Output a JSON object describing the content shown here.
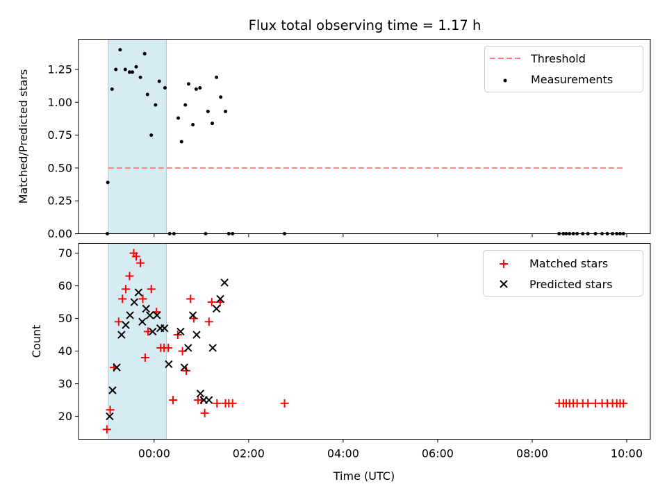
{
  "title": "Flux total observing time = 1.17 h",
  "chart_data": [
    {
      "type": "scatter",
      "name": "ratio-panel",
      "ylabel": "Matched/Predicted stars",
      "xlabel": "",
      "xlim": [
        -1.6,
        10.5
      ],
      "ylim": [
        0,
        1.48
      ],
      "yticks": [
        0.0,
        0.25,
        0.5,
        0.75,
        1.0,
        1.25
      ],
      "ytick_labels": [
        "0.00",
        "0.25",
        "0.50",
        "0.75",
        "1.00",
        "1.25"
      ],
      "shaded_interval": [
        -0.97,
        0.26
      ],
      "threshold": {
        "label": "Threshold",
        "y": 0.5,
        "x": [
          -0.97,
          9.93
        ],
        "color": "#ff7f7f"
      },
      "measurements": {
        "label": "Measurements",
        "color": "#000000",
        "x": [
          -0.99,
          -0.89,
          -0.81,
          -0.72,
          -0.61,
          -0.52,
          -0.46,
          -0.38,
          -0.29,
          -0.2,
          -0.14,
          -0.06,
          0.03,
          0.11,
          0.23,
          0.51,
          0.58,
          0.66,
          0.73,
          0.82,
          0.89,
          0.97,
          1.14,
          1.23,
          1.32,
          1.41,
          1.51,
          -0.98,
          0.33,
          0.42,
          1.09,
          1.58,
          1.66,
          2.76,
          8.57,
          8.66,
          8.72,
          8.79,
          8.87,
          8.95,
          9.07,
          9.18,
          9.34,
          9.48,
          9.59,
          9.7,
          9.79,
          9.86,
          9.93
        ],
        "y": [
          0.0,
          1.1,
          1.25,
          1.4,
          1.25,
          1.23,
          1.23,
          1.27,
          1.19,
          1.37,
          1.06,
          0.75,
          0.98,
          1.16,
          1.11,
          0.88,
          0.7,
          0.98,
          1.14,
          0.83,
          1.1,
          1.11,
          0.93,
          0.84,
          1.19,
          1.04,
          0.93,
          0.39,
          0.0,
          0.0,
          0.0,
          0.0,
          0.0,
          0.0,
          0.0,
          0.0,
          0.0,
          0.0,
          0.0,
          0.0,
          0.0,
          0.0,
          0.0,
          0.0,
          0.0,
          0.0,
          0.0,
          0.0,
          0.0
        ]
      },
      "legend": "top-right"
    },
    {
      "type": "scatter",
      "name": "count-panel",
      "ylabel": "Count",
      "xlabel": "Time (UTC)",
      "xlim": [
        -1.6,
        10.5
      ],
      "ylim": [
        13,
        73
      ],
      "yticks": [
        20,
        30,
        40,
        50,
        60,
        70
      ],
      "ytick_labels": [
        "20",
        "30",
        "40",
        "50",
        "60",
        "70"
      ],
      "xticks": [
        0,
        2,
        4,
        6,
        8,
        10
      ],
      "xtick_labels": [
        "00:00",
        "02:00",
        "04:00",
        "06:00",
        "08:00",
        "10:00"
      ],
      "shaded_interval": [
        -0.97,
        0.26
      ],
      "matched": {
        "label": "Matched stars",
        "color": "#ff0000",
        "x": [
          -1.0,
          -0.93,
          -0.85,
          -0.75,
          -0.67,
          -0.6,
          -0.52,
          -0.43,
          -0.38,
          -0.29,
          -0.24,
          -0.19,
          -0.13,
          -0.06,
          0.05,
          0.14,
          0.21,
          0.3,
          0.4,
          0.5,
          0.6,
          0.68,
          0.77,
          0.84,
          0.93,
          1.0,
          1.07,
          1.16,
          1.22,
          1.33,
          1.4,
          1.51,
          1.58,
          1.66,
          2.76,
          8.57,
          8.66,
          8.72,
          8.79,
          8.87,
          8.95,
          9.07,
          9.18,
          9.34,
          9.48,
          9.59,
          9.7,
          9.79,
          9.86,
          9.93
        ],
        "y": [
          16,
          22,
          35,
          49,
          56,
          59,
          63,
          70,
          69,
          67,
          56,
          38,
          46,
          59,
          52,
          41,
          41,
          41,
          25,
          45,
          40,
          34,
          56,
          50,
          25,
          25,
          21,
          49,
          55,
          24,
          55,
          24,
          24,
          24,
          24,
          24,
          24,
          24,
          24,
          24,
          24,
          24,
          24,
          24,
          24,
          24,
          24,
          24,
          24,
          24
        ]
      },
      "predicted": {
        "label": "Predicted stars",
        "color": "#000000",
        "x": [
          -0.94,
          -0.88,
          -0.79,
          -0.69,
          -0.6,
          -0.51,
          -0.42,
          -0.33,
          -0.25,
          -0.17,
          -0.09,
          -0.03,
          0.06,
          0.13,
          0.22,
          0.31,
          0.56,
          0.64,
          0.72,
          0.82,
          0.9,
          0.98,
          1.05,
          1.16,
          1.24,
          1.32,
          1.4,
          1.49
        ],
        "y": [
          20,
          28,
          35,
          45,
          48,
          51,
          55,
          58,
          49,
          53,
          51,
          46,
          51,
          47,
          47,
          36,
          46,
          35,
          41,
          51,
          45,
          27,
          25,
          25,
          41,
          53,
          56,
          61
        ]
      },
      "legend": "top-right"
    }
  ]
}
